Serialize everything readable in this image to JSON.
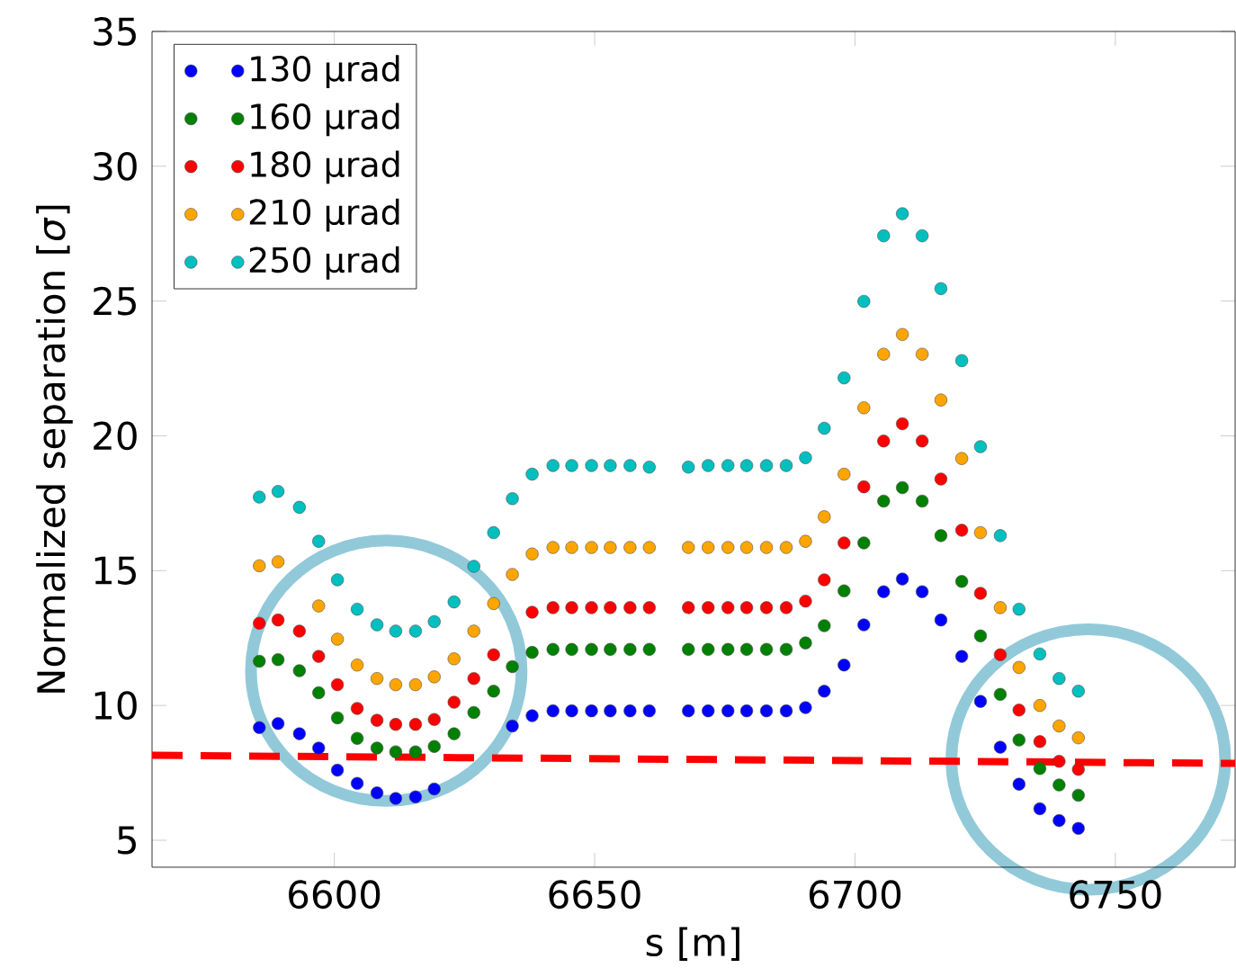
{
  "chart_data": {
    "type": "scatter",
    "xlabel": "s [m]",
    "ylabel": "Normalized separation [*σ*]",
    "xlim": [
      6565,
      6773
    ],
    "ylim": [
      4,
      35
    ],
    "xticks": [
      6600,
      6650,
      6700,
      6750
    ],
    "yticks": [
      5,
      10,
      15,
      20,
      25,
      30,
      35
    ],
    "legend": "top left",
    "x": [
      6585.6,
      6589.2,
      6593.3,
      6597.0,
      6600.6,
      6604.4,
      6608.2,
      6611.8,
      6615.6,
      6619.2,
      6623.0,
      6626.8,
      6630.6,
      6634.2,
      6638.0,
      6642.0,
      6645.6,
      6649.4,
      6653.0,
      6656.8,
      6660.5,
      6668.0,
      6671.8,
      6675.6,
      6679.2,
      6683.0,
      6686.8,
      6690.5,
      6694.1,
      6697.9,
      6701.7,
      6705.5,
      6709.1,
      6712.9,
      6716.5,
      6720.5,
      6724.1,
      6727.9,
      6731.5,
      6735.5,
      6739.2,
      6742.9
    ],
    "series": [
      {
        "name": "130 μrad",
        "color": "#0000ff",
        "marker": "circle",
        "values": [
          9.18,
          9.33,
          8.95,
          8.42,
          7.6,
          7.11,
          6.76,
          6.55,
          6.61,
          6.9,
          null,
          null,
          null,
          9.24,
          9.62,
          9.8,
          9.8,
          9.8,
          9.8,
          9.8,
          9.8,
          9.8,
          9.8,
          9.8,
          9.8,
          9.8,
          9.8,
          9.92,
          10.53,
          11.5,
          12.99,
          14.22,
          14.69,
          14.22,
          13.17,
          11.82,
          10.15,
          8.45,
          7.08,
          6.17,
          5.73,
          5.44
        ]
      },
      {
        "name": "160 μrad",
        "color": "#008000",
        "marker": "circle",
        "values": [
          11.64,
          11.7,
          11.29,
          10.47,
          9.54,
          8.78,
          8.42,
          8.28,
          8.28,
          8.48,
          8.95,
          9.74,
          10.53,
          11.44,
          11.97,
          12.08,
          12.08,
          12.08,
          12.08,
          12.08,
          12.08,
          12.08,
          12.08,
          12.08,
          12.08,
          12.08,
          12.08,
          12.32,
          12.96,
          14.25,
          16.03,
          17.58,
          18.08,
          17.58,
          16.3,
          14.6,
          12.58,
          10.41,
          8.72,
          7.66,
          7.05,
          6.67
        ]
      },
      {
        "name": "180 μrad",
        "color": "#ff0000",
        "marker": "circle",
        "values": [
          13.05,
          13.17,
          12.76,
          11.82,
          10.77,
          9.89,
          9.45,
          9.3,
          9.3,
          9.48,
          10.12,
          11.0,
          11.88,
          null,
          13.46,
          13.63,
          13.63,
          13.63,
          13.63,
          13.63,
          13.63,
          13.63,
          13.63,
          13.63,
          13.63,
          13.63,
          13.63,
          13.87,
          14.66,
          16.03,
          18.11,
          19.81,
          20.45,
          19.81,
          18.4,
          16.5,
          14.16,
          11.88,
          9.83,
          8.66,
          7.93,
          7.63
        ]
      },
      {
        "name": "210 μrad",
        "color": "#ffa500",
        "marker": "circle",
        "values": [
          15.18,
          15.33,
          null,
          13.69,
          12.46,
          11.5,
          11.0,
          10.77,
          10.77,
          11.06,
          11.73,
          12.76,
          13.78,
          14.86,
          15.62,
          15.86,
          15.86,
          15.86,
          15.86,
          15.86,
          15.86,
          15.86,
          15.86,
          15.86,
          15.86,
          15.86,
          15.86,
          16.09,
          17.0,
          18.58,
          21.04,
          23.03,
          23.76,
          23.03,
          21.33,
          19.16,
          16.41,
          13.63,
          11.41,
          10.0,
          9.24,
          8.8
        ]
      },
      {
        "name": "250 μrad",
        "color": "#00bfbf",
        "marker": "circle",
        "values": [
          17.73,
          17.94,
          17.35,
          16.09,
          14.66,
          13.57,
          12.99,
          12.76,
          12.76,
          13.11,
          13.84,
          15.16,
          16.41,
          17.67,
          18.58,
          18.9,
          18.9,
          18.9,
          18.9,
          18.9,
          18.84,
          18.84,
          18.9,
          18.9,
          18.9,
          18.9,
          18.9,
          19.19,
          20.28,
          22.15,
          24.99,
          27.42,
          28.24,
          27.42,
          25.46,
          22.79,
          19.6,
          16.3,
          13.57,
          11.91,
          11.0,
          10.53
        ]
      },
      {
        "type": "line",
        "marker": "none",
        "line_style": "dashed",
        "color": "#ff0000",
        "x": [
          6565,
          6773
        ],
        "values": [
          8.15,
          7.85
        ]
      }
    ]
  }
}
